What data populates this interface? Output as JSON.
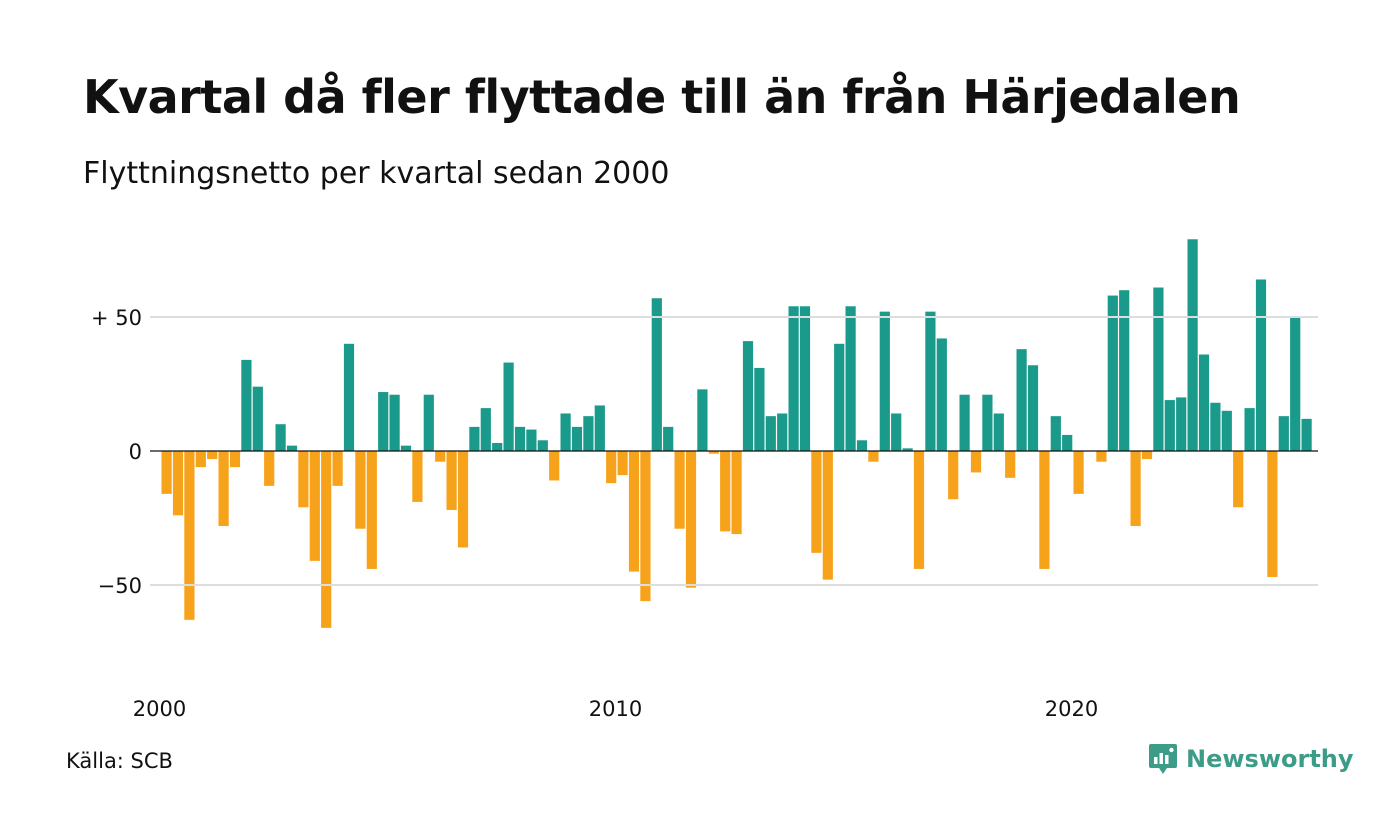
{
  "title": "Kvartal då fler flyttade till än från Härjedalen",
  "subtitle": "Flyttningsnetto per kvartal sedan 2000",
  "source": "Källa: SCB",
  "brand": {
    "name": "Newsworthy",
    "icon": "newsworthy-logo-icon",
    "color": "#3d9c87"
  },
  "colors": {
    "positive": "#1a9a8a",
    "negative": "#f7a21b",
    "grid": "#dddddd",
    "zero_line": "#111111"
  },
  "chart_data": {
    "type": "bar",
    "x_start": "2000 Q1",
    "x_tick_labels": [
      "2000",
      "2010",
      "2020"
    ],
    "y_tick_labels": [
      "+ 50",
      "0",
      "−50"
    ],
    "y_ticks": [
      50,
      0,
      -50
    ],
    "ylim": [
      -75,
      80
    ],
    "grid": true,
    "legend": "none",
    "values": [
      -16,
      -24,
      -63,
      -6,
      -3,
      -28,
      -6,
      34,
      24,
      -13,
      10,
      2,
      -21,
      -41,
      -66,
      -13,
      40,
      -29,
      -44,
      22,
      21,
      2,
      -19,
      21,
      -4,
      -22,
      -36,
      9,
      16,
      3,
      33,
      9,
      8,
      4,
      -11,
      14,
      9,
      13,
      17,
      -12,
      -9,
      -45,
      -56,
      57,
      9,
      -29,
      -51,
      23,
      -1,
      -30,
      -31,
      41,
      31,
      13,
      14,
      54,
      54,
      -38,
      -48,
      40,
      54,
      4,
      -4,
      52,
      14,
      1,
      -44,
      52,
      42,
      -18,
      21,
      -8,
      21,
      14,
      -10,
      38,
      32,
      -44,
      13,
      6,
      -16,
      0,
      -4,
      58,
      60,
      -28,
      -3,
      61,
      19,
      20,
      79,
      36,
      18,
      15,
      -21,
      16,
      64,
      -47,
      13,
      50,
      12
    ]
  }
}
